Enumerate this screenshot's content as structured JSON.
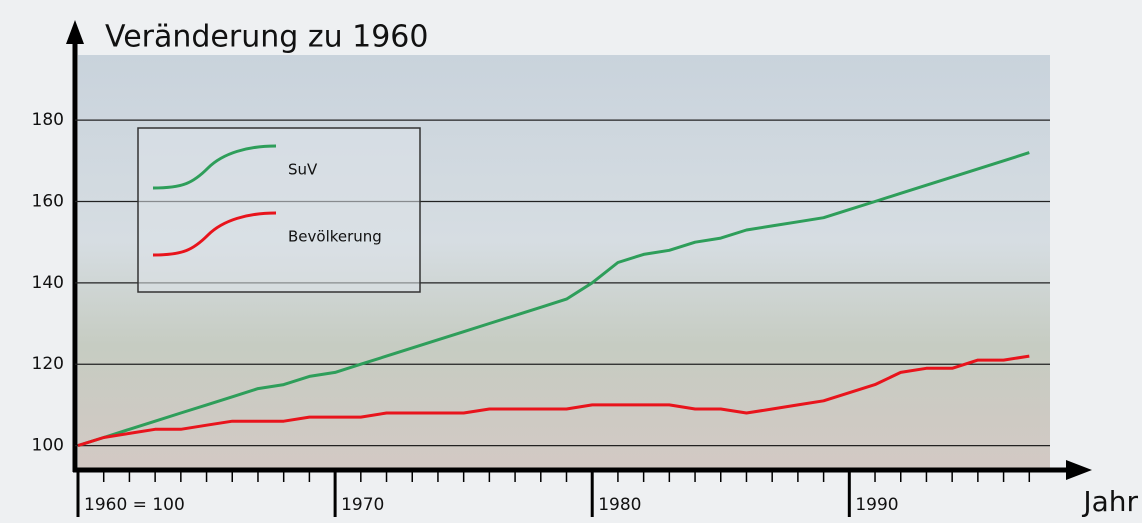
{
  "chart_data": {
    "type": "line",
    "title": "Veränderung zu 1960",
    "x_label": "Jahr",
    "x": [
      1960,
      1961,
      1962,
      1963,
      1964,
      1965,
      1966,
      1967,
      1968,
      1969,
      1970,
      1971,
      1972,
      1973,
      1974,
      1975,
      1976,
      1977,
      1978,
      1979,
      1980,
      1981,
      1982,
      1983,
      1984,
      1985,
      1986,
      1987,
      1988,
      1989,
      1990,
      1991,
      1992,
      1993,
      1994,
      1995,
      1996,
      1997
    ],
    "series": [
      {
        "name": "SuV",
        "color": "#2e9e5a",
        "values": [
          100,
          102,
          104,
          106,
          108,
          110,
          112,
          114,
          115,
          117,
          118,
          120,
          122,
          124,
          126,
          128,
          130,
          132,
          134,
          136,
          140,
          145,
          147,
          148,
          150,
          151,
          153,
          154,
          155,
          156,
          158,
          160,
          162,
          164,
          166,
          168,
          170,
          172
        ]
      },
      {
        "name": "Bevölkerung",
        "color": "#e8141c",
        "values": [
          100,
          102,
          103,
          104,
          104,
          105,
          106,
          106,
          106,
          107,
          107,
          107,
          108,
          108,
          108,
          108,
          109,
          109,
          109,
          109,
          110,
          110,
          110,
          110,
          109,
          109,
          108,
          109,
          110,
          111,
          113,
          115,
          118,
          119,
          119,
          121,
          121,
          122
        ]
      }
    ],
    "xlim": [
      1960,
      1998
    ],
    "xticks": [
      {
        "value": 1960,
        "label": "1960 = 100"
      },
      1970,
      1980,
      1990
    ],
    "xminorticks": [
      1961,
      1962,
      1963,
      1964,
      1965,
      1966,
      1967,
      1968,
      1969,
      1971,
      1972,
      1973,
      1974,
      1975,
      1976,
      1977,
      1978,
      1979,
      1981,
      1982,
      1983,
      1984,
      1985,
      1986,
      1987,
      1988,
      1989,
      1991,
      1992,
      1993,
      1994,
      1995,
      1996,
      1997
    ],
    "ylim": [
      94,
      196
    ],
    "yticks": [
      100,
      120,
      140,
      160,
      180
    ],
    "grid": true,
    "legend": "upper left"
  }
}
